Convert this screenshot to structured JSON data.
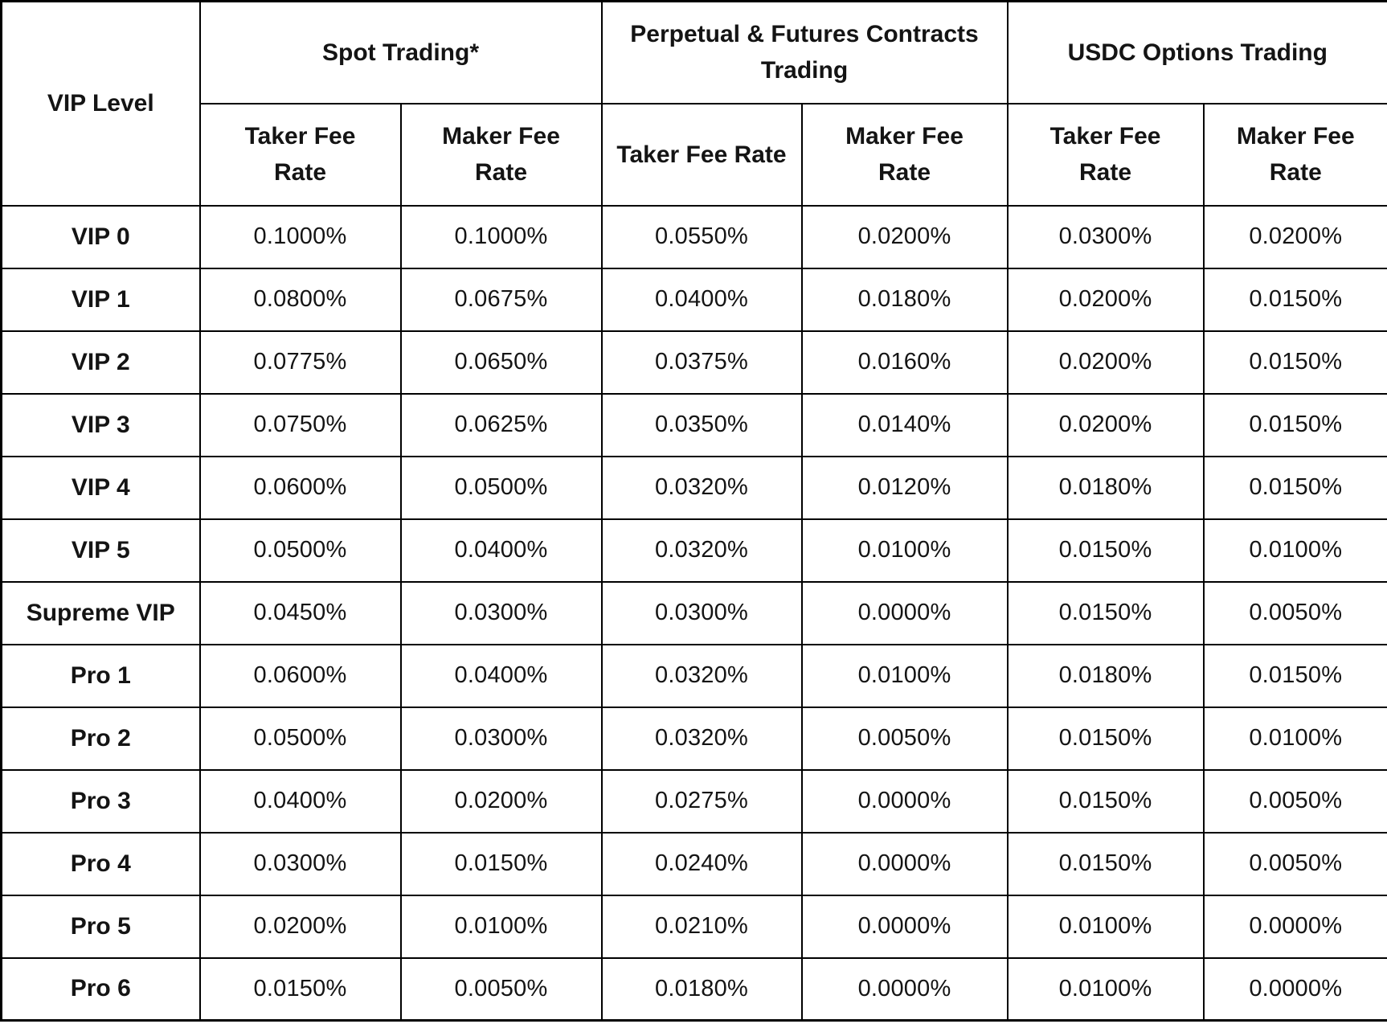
{
  "colors": {
    "background": "#ffffff",
    "border": "#000000",
    "text": "#141414"
  },
  "chart_data": {
    "type": "table",
    "corner_header": "VIP Level",
    "groups": [
      {
        "label": "Spot Trading*",
        "taker_header": "Taker Fee\nRate",
        "maker_header": "Maker Fee\nRate"
      },
      {
        "label": "Perpetual & Futures Contracts\nTrading",
        "taker_header": "Taker Fee Rate",
        "maker_header": "Maker Fee\nRate"
      },
      {
        "label": "USDC Options Trading",
        "taker_header": "Taker Fee\nRate",
        "maker_header": "Maker Fee\nRate"
      }
    ],
    "columns": [
      "VIP Level",
      "Spot Trading Taker Fee Rate",
      "Spot Trading Maker Fee Rate",
      "Perpetual & Futures Contracts Trading Taker Fee Rate",
      "Perpetual & Futures Contracts Trading Maker Fee Rate",
      "USDC Options Trading Taker Fee Rate",
      "USDC Options Trading Maker Fee Rate"
    ],
    "rows": [
      {
        "level": "VIP 0",
        "values": [
          "0.1000%",
          "0.1000%",
          "0.0550%",
          "0.0200%",
          "0.0300%",
          "0.0200%"
        ]
      },
      {
        "level": "VIP 1",
        "values": [
          "0.0800%",
          "0.0675%",
          "0.0400%",
          "0.0180%",
          "0.0200%",
          "0.0150%"
        ]
      },
      {
        "level": "VIP 2",
        "values": [
          "0.0775%",
          "0.0650%",
          "0.0375%",
          "0.0160%",
          "0.0200%",
          "0.0150%"
        ]
      },
      {
        "level": "VIP 3",
        "values": [
          "0.0750%",
          "0.0625%",
          "0.0350%",
          "0.0140%",
          "0.0200%",
          "0.0150%"
        ]
      },
      {
        "level": "VIP 4",
        "values": [
          "0.0600%",
          "0.0500%",
          "0.0320%",
          "0.0120%",
          "0.0180%",
          "0.0150%"
        ]
      },
      {
        "level": "VIP 5",
        "values": [
          "0.0500%",
          "0.0400%",
          "0.0320%",
          "0.0100%",
          "0.0150%",
          "0.0100%"
        ]
      },
      {
        "level": "Supreme VIP",
        "values": [
          "0.0450%",
          "0.0300%",
          "0.0300%",
          "0.0000%",
          "0.0150%",
          "0.0050%"
        ]
      },
      {
        "level": "Pro 1",
        "values": [
          "0.0600%",
          "0.0400%",
          "0.0320%",
          "0.0100%",
          "0.0180%",
          "0.0150%"
        ]
      },
      {
        "level": "Pro 2",
        "values": [
          "0.0500%",
          "0.0300%",
          "0.0320%",
          "0.0050%",
          "0.0150%",
          "0.0100%"
        ]
      },
      {
        "level": "Pro 3",
        "values": [
          "0.0400%",
          "0.0200%",
          "0.0275%",
          "0.0000%",
          "0.0150%",
          "0.0050%"
        ]
      },
      {
        "level": "Pro 4",
        "values": [
          "0.0300%",
          "0.0150%",
          "0.0240%",
          "0.0000%",
          "0.0150%",
          "0.0050%"
        ]
      },
      {
        "level": "Pro 5",
        "values": [
          "0.0200%",
          "0.0100%",
          "0.0210%",
          "0.0000%",
          "0.0100%",
          "0.0000%"
        ]
      },
      {
        "level": "Pro 6",
        "values": [
          "0.0150%",
          "0.0050%",
          "0.0180%",
          "0.0000%",
          "0.0100%",
          "0.0000%"
        ]
      }
    ]
  }
}
